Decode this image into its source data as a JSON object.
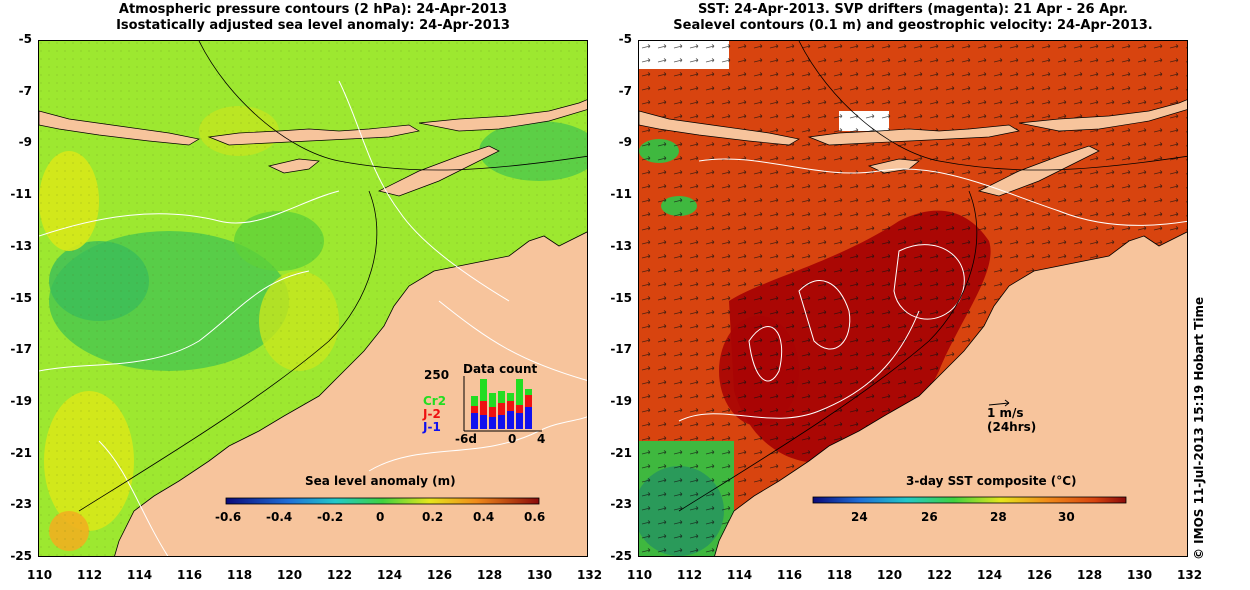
{
  "left_panel": {
    "title_line1": "Atmospheric pressure contours (2 hPa): 24-Apr-2013",
    "title_line2": "Isostatically adjusted sea level anomaly: 24-Apr-2013",
    "colorbar": {
      "label": "Sea level anomaly (m)",
      "ticks": [
        "-0.6",
        "-0.4",
        "-0.2",
        "0",
        "0.2",
        "0.4",
        "0.6"
      ],
      "range": [
        -0.6,
        0.6
      ]
    },
    "inset": {
      "title": "Data count",
      "y_tick": "250",
      "x_ticks": [
        "-6d",
        "0",
        "4"
      ],
      "legend": [
        {
          "label": "Cr2",
          "color": "#22dd22"
        },
        {
          "label": "J-2",
          "color": "#ee1111"
        },
        {
          "label": "J-1",
          "color": "#1111ee"
        }
      ]
    }
  },
  "right_panel": {
    "title_line1": "SST: 24-Apr-2013. SVP drifters (magenta): 21 Apr - 26 Apr.",
    "title_line2": "Sealevel contours (0.1 m) and geostrophic velocity: 24-Apr-2013.",
    "scale_arrow_label1": "1 m/s",
    "scale_arrow_label2": "(24hrs)",
    "colorbar": {
      "label": "3-day SST composite (°C)",
      "ticks": [
        "24",
        "26",
        "28",
        "30"
      ],
      "range": [
        22.5,
        31.5
      ]
    }
  },
  "axes": {
    "y_ticks": [
      "-5",
      "-7",
      "-9",
      "-11",
      "-13",
      "-15",
      "-17",
      "-19",
      "-21",
      "-23",
      "-25"
    ],
    "x_ticks": [
      "110",
      "112",
      "114",
      "116",
      "118",
      "120",
      "122",
      "124",
      "126",
      "128",
      "130",
      "132"
    ],
    "lat_range": [
      -25,
      -5
    ],
    "lon_range": [
      110,
      132
    ]
  },
  "credit": "© IMOS 11-Jul-2013 15:19 Hobart Time",
  "colors": {
    "land": "#f7c49c",
    "sla_ocean": "#9de830",
    "sst_ocean": "#d8440f",
    "sst_hot": "#a80404",
    "contour": "#ffffff"
  }
}
